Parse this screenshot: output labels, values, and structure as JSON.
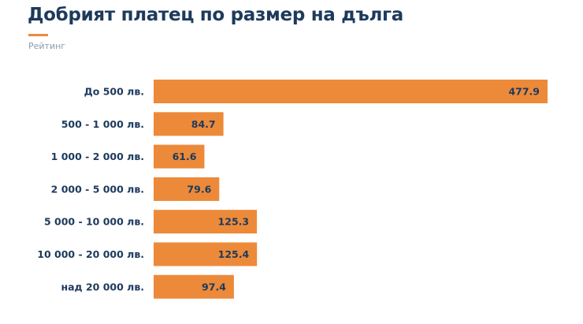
{
  "chart_data": {
    "type": "bar",
    "orientation": "horizontal",
    "title": "Добрият платец по размер на дълга",
    "subtitle": "Рейтинг",
    "categories": [
      "До 500 лв.",
      "500 - 1 000 лв.",
      "1 000 - 2 000 лв.",
      "2 000 - 5 000 лв.",
      "5 000 - 10 000 лв.",
      "10 000 - 20 000 лв.",
      "над 20 000 лв."
    ],
    "values": [
      477.9,
      84.7,
      61.6,
      79.6,
      125.3,
      125.4,
      97.4
    ],
    "xlim": [
      0,
      477.9
    ],
    "grid": false,
    "data_labels": true,
    "colors": {
      "bar": "#ec8a3a",
      "text": "#1d3a5c",
      "accent": "#ec8a3a",
      "subtitle": "#8a9aae"
    }
  }
}
